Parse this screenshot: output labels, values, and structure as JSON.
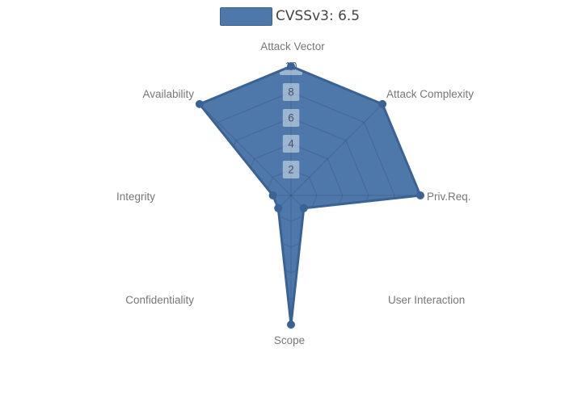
{
  "legend": {
    "items": [
      {
        "label": "CVSSv3: 6.5",
        "swatch_color": "#4e78aa",
        "swatch_border": "#3a6295"
      }
    ],
    "position": "top-center"
  },
  "chart_data": {
    "type": "radar",
    "title": "CVSSv3: 6.5",
    "axes": [
      "Attack Vector",
      "Attack Complexity",
      "Priv.Req.",
      "User Interaction",
      "Scope",
      "Confidentiality",
      "Integrity",
      "Availability"
    ],
    "series": [
      {
        "name": "CVSSv3: 6.5",
        "values": [
          10,
          10,
          10,
          1.4,
          10,
          1.4,
          1.4,
          10
        ],
        "fill_color": "#4e78aa",
        "line_color": "#3a6295",
        "marker": "circle"
      }
    ],
    "radial_axis": {
      "ticks": [
        2,
        4,
        6,
        8,
        10
      ],
      "range": [
        0,
        10
      ],
      "tick_label_color": "rgba(55,68,86,0.85)",
      "tick_label_bg": "rgba(255,255,255,0.45)"
    },
    "start_axis": "top",
    "direction": "clockwise",
    "grid_shape": "polygon",
    "grid_visible_only_inside_fill": true,
    "grid_color": "rgba(20,32,50,0.18)",
    "axis_label_color": "#777777",
    "legend_position": "top"
  }
}
